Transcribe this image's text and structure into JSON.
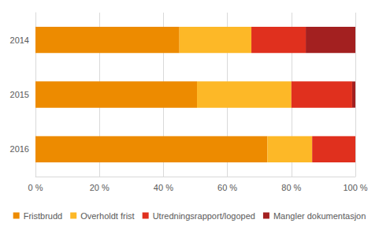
{
  "chart_data": {
    "type": "bar",
    "orientation": "horizontal",
    "stacked": true,
    "grid": true,
    "legend": "bottom",
    "categories": [
      "2014",
      "2015",
      "2016"
    ],
    "series": [
      {
        "name": "Fristbrudd",
        "color": "#ED8B00",
        "values": [
          45,
          50.5,
          72.5
        ]
      },
      {
        "name": "Overholdt frist",
        "color": "#FDB827",
        "values": [
          22.5,
          29.5,
          14
        ]
      },
      {
        "name": "Utredningsrapport/logoped",
        "color": "#E0301E",
        "values": [
          17,
          19,
          13.5
        ]
      },
      {
        "name": "Mangler dokumentasjon",
        "color": "#A32020",
        "values": [
          15.5,
          1,
          0
        ]
      }
    ],
    "xlim": [
      0,
      100
    ],
    "xticks": [
      {
        "value": 0,
        "label": "0 %"
      },
      {
        "value": 20,
        "label": "20 %"
      },
      {
        "value": 40,
        "label": "40 %"
      },
      {
        "value": 60,
        "label": "60 %"
      },
      {
        "value": 80,
        "label": "80 %"
      },
      {
        "value": 100,
        "label": "100 %"
      }
    ]
  }
}
